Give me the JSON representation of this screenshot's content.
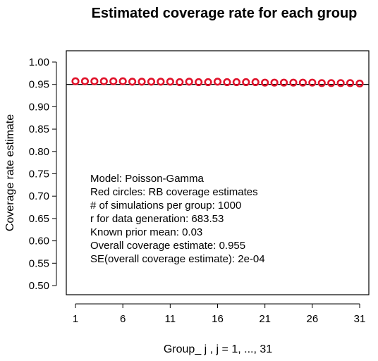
{
  "chart_data": {
    "type": "scatter",
    "title": "Estimated coverage rate for each group",
    "xlabel": "Group_ j ,  j = 1, ..., 31",
    "ylabel": "Coverage rate estimate",
    "xlim": [
      1,
      31
    ],
    "ylim": [
      0.5,
      1.0
    ],
    "x_ticks": [
      "1",
      "6",
      "11",
      "16",
      "21",
      "26",
      "31"
    ],
    "y_ticks": [
      "1.00",
      "0.95",
      "0.90",
      "0.85",
      "0.80",
      "0.75",
      "0.70",
      "0.65",
      "0.60",
      "0.55",
      "0.50"
    ],
    "reference_line": 0.95,
    "grid": false,
    "marker_color": "#e0132b",
    "x": [
      1,
      2,
      3,
      4,
      5,
      6,
      7,
      8,
      9,
      10,
      11,
      12,
      13,
      14,
      15,
      16,
      17,
      18,
      19,
      20,
      21,
      22,
      23,
      24,
      25,
      26,
      27,
      28,
      29,
      30,
      31
    ],
    "y": [
      0.957,
      0.957,
      0.957,
      0.957,
      0.957,
      0.957,
      0.956,
      0.956,
      0.956,
      0.956,
      0.956,
      0.955,
      0.956,
      0.955,
      0.955,
      0.956,
      0.955,
      0.955,
      0.955,
      0.955,
      0.954,
      0.954,
      0.954,
      0.954,
      0.954,
      0.954,
      0.953,
      0.953,
      0.953,
      0.953,
      0.952
    ],
    "annotations": [
      "Model:  Poisson-Gamma",
      "Red circles: RB coverage estimates",
      "# of simulations per group:  1000",
      "r for data generation:  683.53",
      "Known prior mean:  0.03",
      "Overall coverage estimate:  0.955",
      "SE(overall coverage estimate):  2e-04"
    ]
  }
}
